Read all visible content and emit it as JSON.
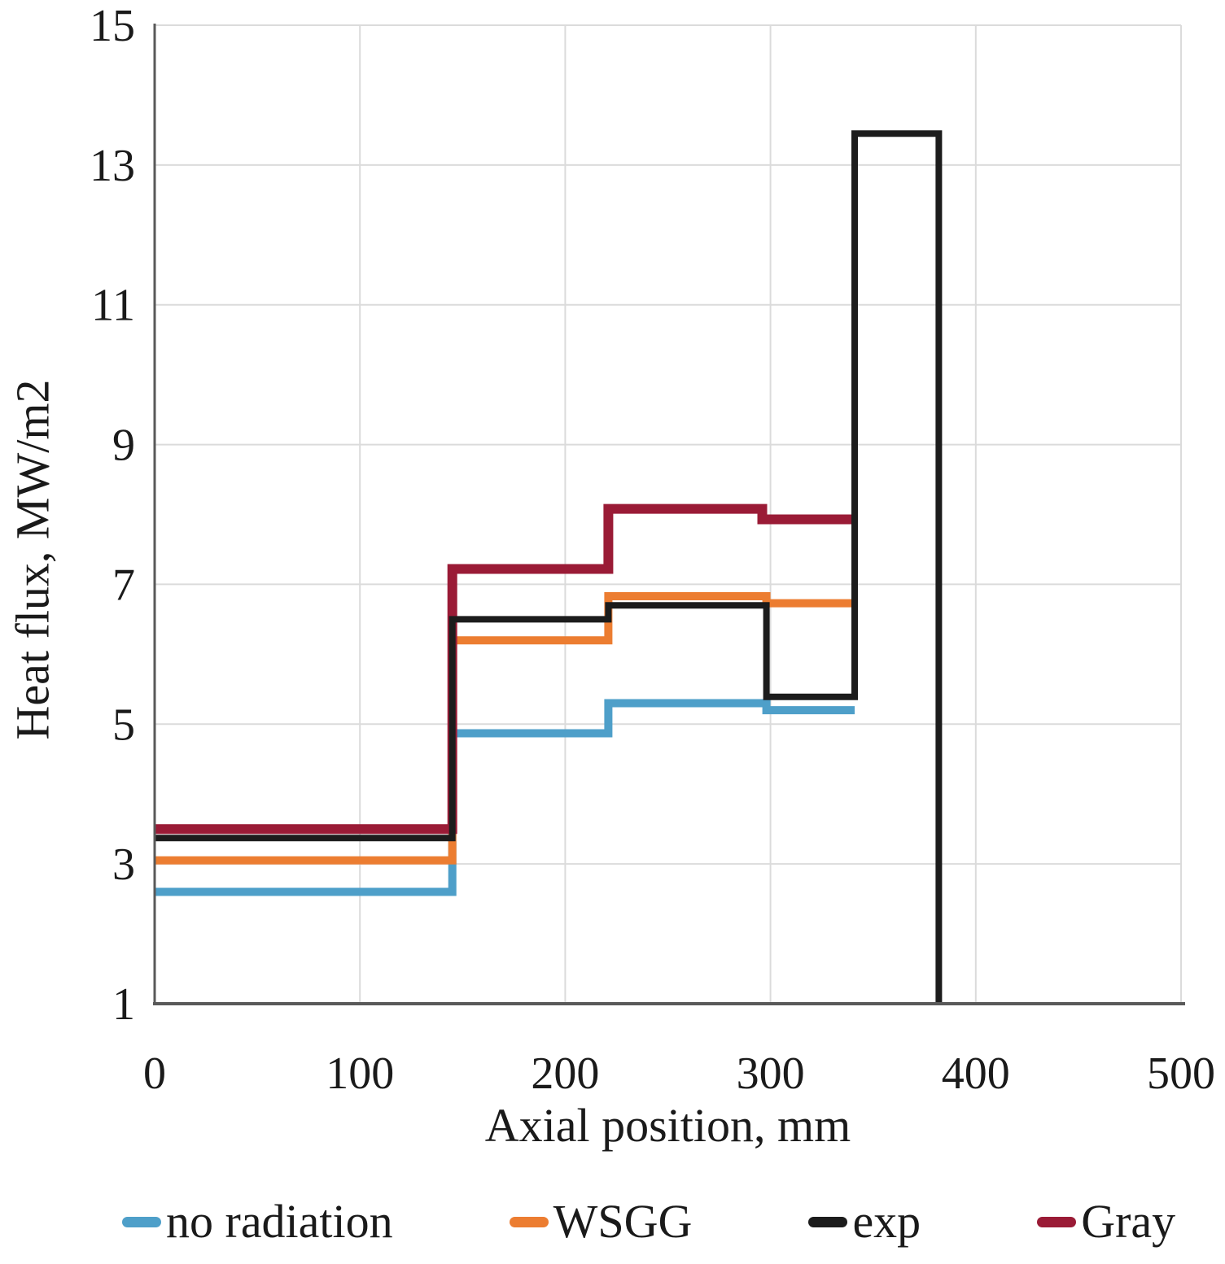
{
  "figure": {
    "background": "#FFFFFF",
    "axis_color": "#595959",
    "grid_color": "#DBDBDB"
  },
  "chart_data": {
    "type": "line",
    "subtype": "step",
    "title": "",
    "xlabel": "Axial position, mm",
    "ylabel": "Heat flux, MW/m2",
    "xlim": [
      0,
      500
    ],
    "ylim": [
      1,
      15
    ],
    "x_ticks": [
      0,
      100,
      200,
      300,
      400,
      500
    ],
    "y_ticks": [
      1,
      3,
      5,
      7,
      9,
      11,
      13,
      15
    ],
    "grid": true,
    "legend_position": "bottom",
    "legend_order": [
      "no radiation",
      "WSGG",
      "exp",
      "Gray"
    ],
    "draw_order": [
      "no radiation",
      "WSGG",
      "Gray",
      "exp"
    ],
    "series": [
      {
        "name": "no radiation",
        "color": "#4E9FC9",
        "line_width": 10,
        "points": [
          [
            0,
            2.6
          ],
          [
            145,
            2.6
          ],
          [
            145,
            4.87
          ],
          [
            221,
            4.87
          ],
          [
            221,
            5.3
          ],
          [
            298,
            5.3
          ],
          [
            298,
            5.2
          ],
          [
            341,
            5.2
          ]
        ]
      },
      {
        "name": "WSGG",
        "color": "#EC7D31",
        "line_width": 10,
        "points": [
          [
            0,
            3.05
          ],
          [
            145,
            3.05
          ],
          [
            145,
            6.2
          ],
          [
            221,
            6.2
          ],
          [
            221,
            6.83
          ],
          [
            298,
            6.83
          ],
          [
            298,
            6.73
          ],
          [
            341,
            6.73
          ]
        ]
      },
      {
        "name": "exp",
        "color": "#1C1C1C",
        "line_width": 8,
        "points": [
          [
            0,
            3.37
          ],
          [
            145,
            3.37
          ],
          [
            145,
            6.5
          ],
          [
            221,
            6.5
          ],
          [
            221,
            6.7
          ],
          [
            298,
            6.7
          ],
          [
            298,
            5.39
          ],
          [
            341,
            5.39
          ],
          [
            341,
            13.45
          ],
          [
            382,
            13.45
          ],
          [
            382,
            1
          ]
        ]
      },
      {
        "name": "Gray",
        "color": "#9A1B36",
        "line_width": 12,
        "points": [
          [
            0,
            3.5
          ],
          [
            145,
            3.5
          ],
          [
            145,
            7.22
          ],
          [
            221,
            7.22
          ],
          [
            221,
            8.08
          ],
          [
            296,
            8.08
          ],
          [
            296,
            7.93
          ],
          [
            341,
            7.93
          ]
        ]
      }
    ]
  }
}
